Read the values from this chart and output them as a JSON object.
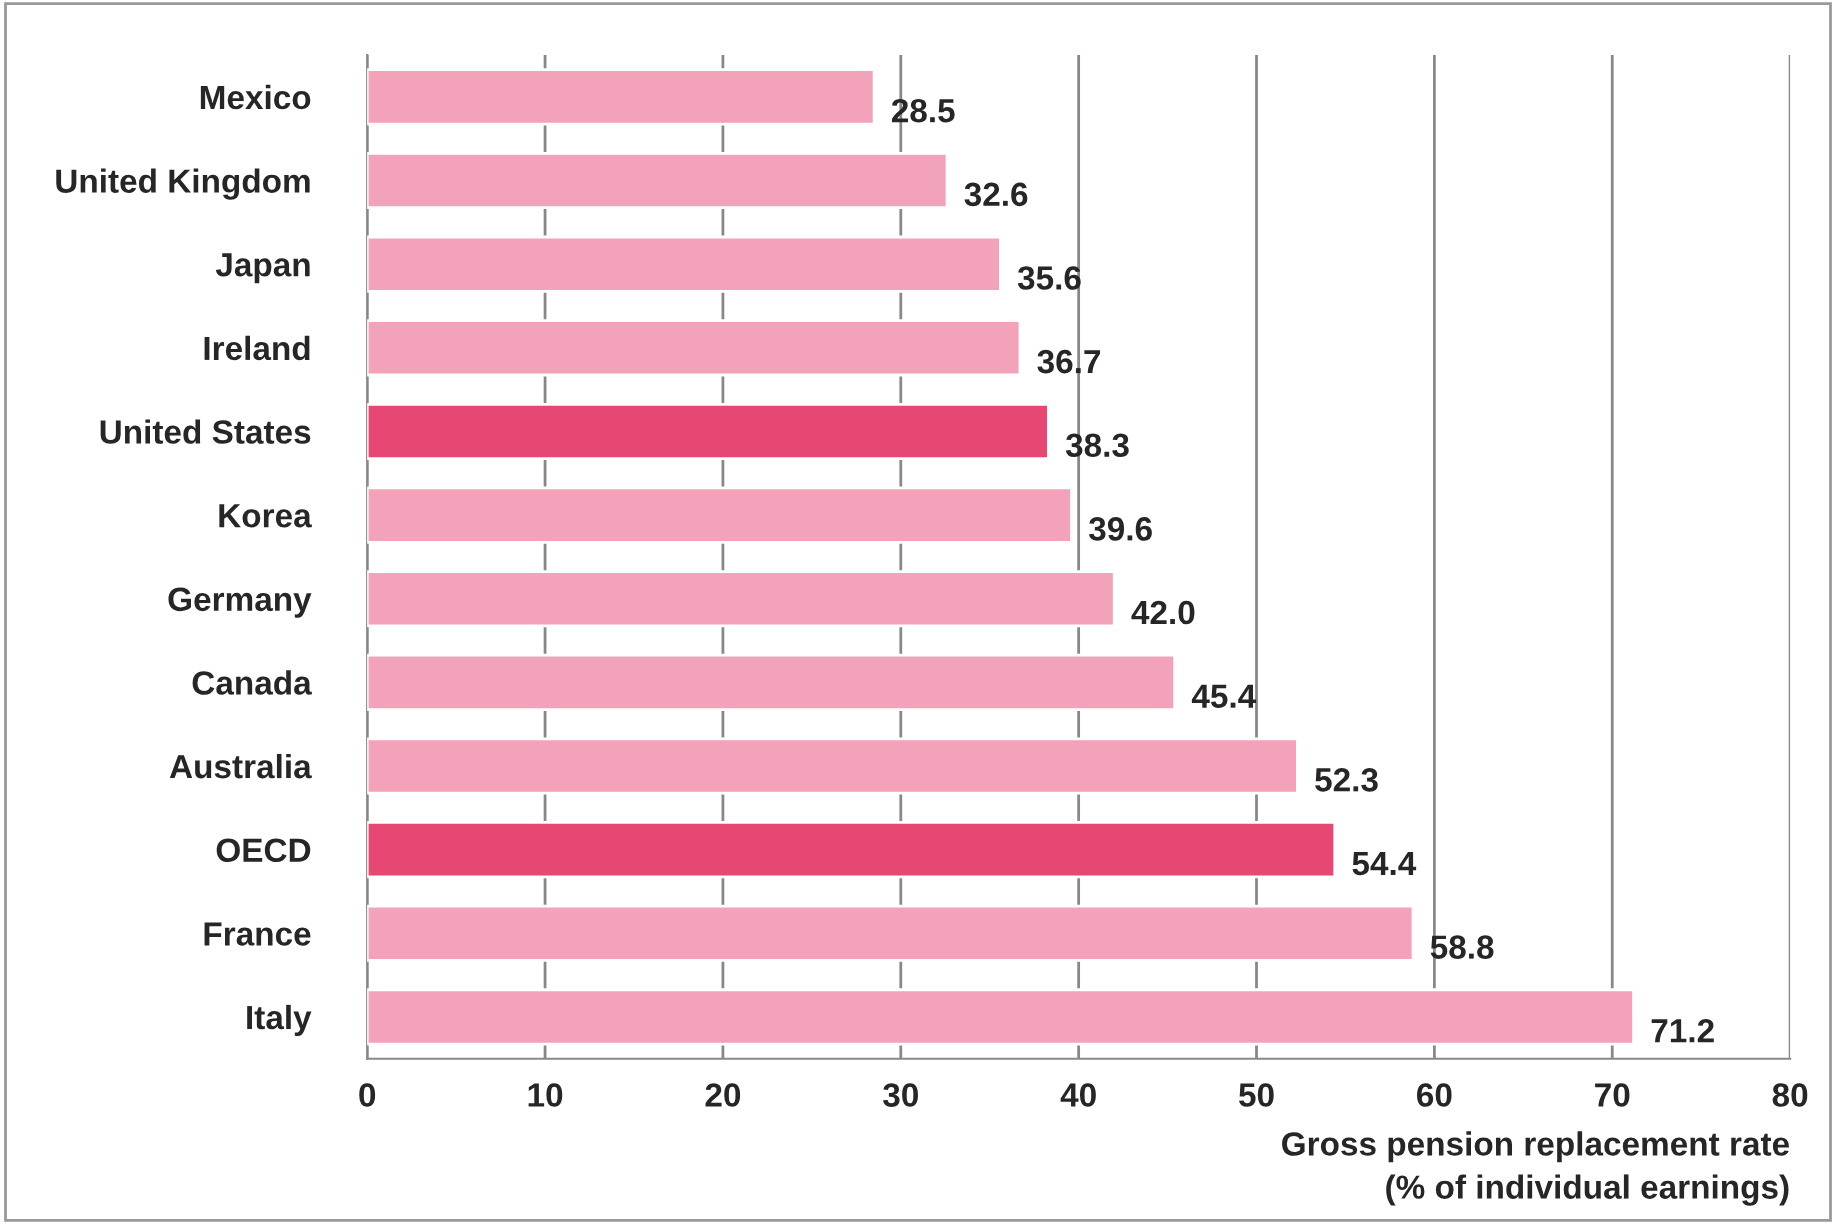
{
  "chart_data": {
    "type": "bar",
    "orientation": "horizontal",
    "categories": [
      "Mexico",
      "United Kingdom",
      "Japan",
      "Ireland",
      "United States",
      "Korea",
      "Germany",
      "Canada",
      "Australia",
      "OECD",
      "France",
      "Italy"
    ],
    "values": [
      28.5,
      32.6,
      35.6,
      36.7,
      38.3,
      39.6,
      42.0,
      45.4,
      52.3,
      54.4,
      58.8,
      71.2
    ],
    "value_labels": [
      "28.5",
      "32.6",
      "35.6",
      "36.7",
      "38.3",
      "39.6",
      "42.0",
      "45.4",
      "52.3",
      "54.4",
      "58.8",
      "71.2"
    ],
    "colors": [
      "#f2a2b9",
      "#f2a2b9",
      "#f2a2b9",
      "#f2a2b9",
      "#e64773",
      "#f2a2b9",
      "#f2a2b9",
      "#f2a2b9",
      "#f2a2b9",
      "#e64773",
      "#f2a2b9",
      "#f2a2b9"
    ],
    "xlabel": "Gross pension replacement rate\n(% of individual earnings)",
    "xlim": [
      0,
      80
    ],
    "xticks": [
      0,
      10,
      20,
      30,
      40,
      50,
      60,
      70,
      80
    ],
    "grid": "x"
  }
}
